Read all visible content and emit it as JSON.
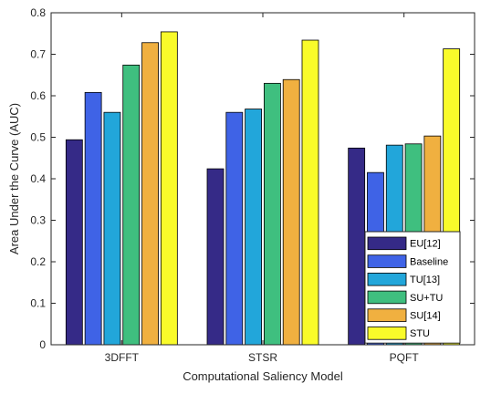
{
  "chart_data": {
    "type": "bar",
    "title": "",
    "xlabel": "Computational Saliency Model",
    "ylabel": "Area Under the Curve (AUC)",
    "ylim": [
      0,
      0.8
    ],
    "yticks": [
      "0",
      "0.1",
      "0.2",
      "0.3",
      "0.4",
      "0.5",
      "0.6",
      "0.7",
      "0.8"
    ],
    "categories": [
      "3DFFT",
      "STSR",
      "PQFT"
    ],
    "grid": false,
    "legend_position": "bottom-right",
    "series": [
      {
        "name": "EU[12]",
        "color": "#352a87",
        "values": [
          0.494,
          0.424,
          0.474
        ]
      },
      {
        "name": "Baseline",
        "color": "#3f63e6",
        "values": [
          0.608,
          0.56,
          0.415
        ]
      },
      {
        "name": "TU[13]",
        "color": "#22a6da",
        "values": [
          0.56,
          0.568,
          0.481
        ]
      },
      {
        "name": "SU+TU",
        "color": "#3fbf7f",
        "values": [
          0.674,
          0.63,
          0.484
        ]
      },
      {
        "name": "SU[14]",
        "color": "#f0b040",
        "values": [
          0.728,
          0.639,
          0.503
        ]
      },
      {
        "name": "STU",
        "color": "#f9fb2a",
        "values": [
          0.754,
          0.734,
          0.713
        ]
      }
    ]
  }
}
